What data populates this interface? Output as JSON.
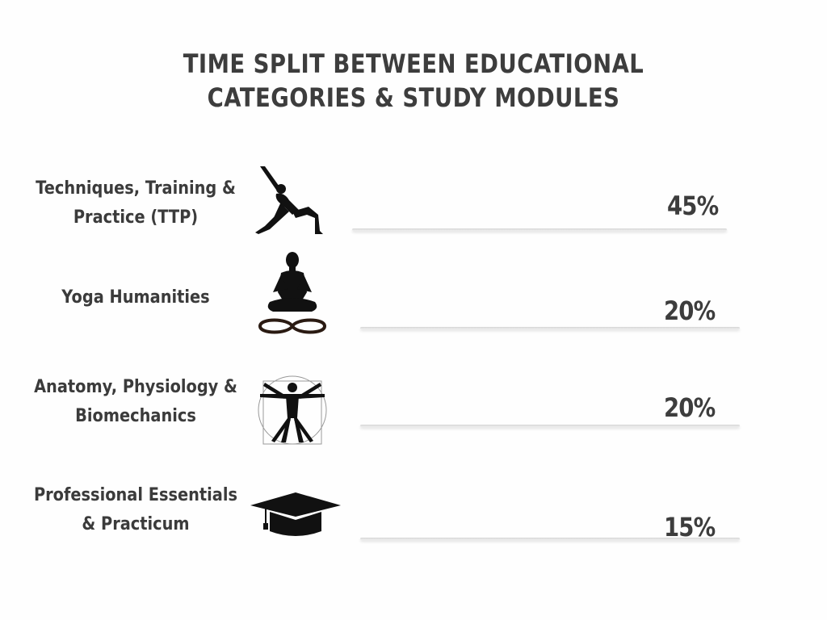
{
  "chart_data": {
    "type": "bar",
    "title": "TIME SPLIT BETWEEN EDUCATIONAL CATEGORIES & STUDY MODULES",
    "title_lines": [
      "TIME SPLIT BETWEEN EDUCATIONAL",
      "CATEGORIES & STUDY MODULES"
    ],
    "categories": [
      "Techniques, Training & Practice (TTP)",
      "Yoga Humanities",
      "Anatomy, Physiology & Biomechanics",
      "Professional Essentials & Practicum"
    ],
    "category_lines": [
      [
        "Techniques,  Training &",
        "Practice (TTP)"
      ],
      [
        "Yoga  Humanities"
      ],
      [
        "Anatomy, Physiology &",
        "Biomechanics"
      ],
      [
        "Professional Essentials",
        "& Practicum"
      ]
    ],
    "values": [
      45,
      20,
      20,
      15
    ],
    "value_labels": [
      "45%",
      "20%",
      "20%",
      "15%"
    ],
    "unit": "%",
    "icons": [
      "yoga-pose-icon",
      "meditation-icon",
      "vitruvian-man-icon",
      "graduation-cap-icon"
    ],
    "colors": {
      "text": "#3d3d3d",
      "icon": "#111111",
      "line": "#d6d6d6"
    }
  }
}
